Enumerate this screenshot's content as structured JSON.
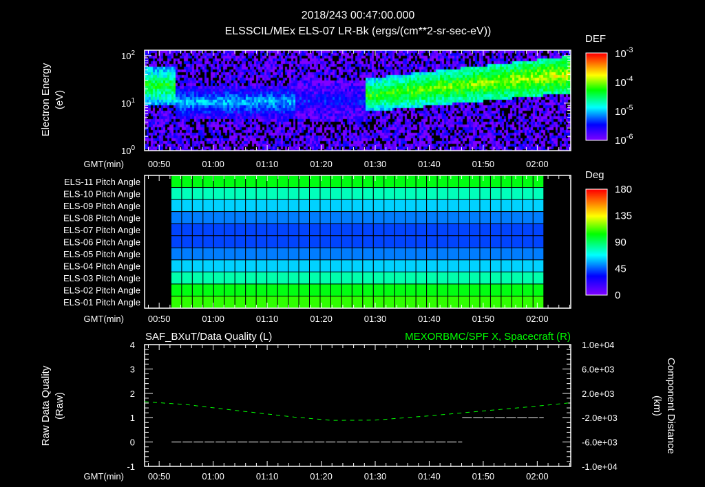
{
  "header": {
    "datetime": "2018/243 00:47:00.000",
    "title": "ELSSCIL/MEx ELS-07 LR-Bk  (ergs/(cm**2-sr-sec-eV))"
  },
  "time_axis": {
    "label": "GMT(min)",
    "xlim_minutes": [
      47.3,
      126.2
    ],
    "ticks": [
      {
        "t": 50,
        "label": "00:50"
      },
      {
        "t": 60,
        "label": "01:00"
      },
      {
        "t": 70,
        "label": "01:10"
      },
      {
        "t": 80,
        "label": "01:20"
      },
      {
        "t": 90,
        "label": "01:30"
      },
      {
        "t": 100,
        "label": "01:40"
      },
      {
        "t": 110,
        "label": "01:50"
      },
      {
        "t": 120,
        "label": "02:00"
      }
    ]
  },
  "chart_data": [
    {
      "type": "heatmap",
      "name": "spectrogram",
      "ylabel": "Electron Energy",
      "yunits": "(eV)",
      "yscale": "log",
      "ylim": [
        1,
        130
      ],
      "yticks": [
        {
          "base": "10",
          "exp": "2",
          "value": 100
        },
        {
          "base": "10",
          "exp": "1",
          "value": 10
        },
        {
          "base": "10",
          "exp": "0",
          "value": 1
        }
      ],
      "colorbar": {
        "label": "DEF",
        "scale": "log",
        "range": [
          1e-06,
          0.001
        ],
        "ticks": [
          {
            "base": "10",
            "exp": "-3"
          },
          {
            "base": "10",
            "exp": "-4"
          },
          {
            "base": "10",
            "exp": "-5"
          },
          {
            "base": "10",
            "exp": "-6"
          }
        ]
      },
      "features": [
        {
          "t_start": 47.3,
          "t_end": 53,
          "e_low": 10,
          "e_high": 60,
          "log_def": -4.3
        },
        {
          "t_start": 53,
          "t_end": 75,
          "e_low": 5,
          "e_high": 25,
          "log_def": -5.0
        },
        {
          "t_start": 75,
          "t_end": 88,
          "e_low": 5,
          "e_high": 30,
          "log_def": -5.4
        },
        {
          "t_start": 88,
          "t_end": 126.2,
          "e_low": 7,
          "e_high": 60,
          "log_def": -4.2
        }
      ],
      "background_log_def": -5.7
    },
    {
      "type": "heatmap",
      "name": "pitch-angles",
      "rows": [
        "ELS-11 Pitch Angle",
        "ELS-10 Pitch Angle",
        "ELS-09 Pitch Angle",
        "ELS-08 Pitch Angle",
        "ELS-07 Pitch Angle",
        "ELS-06 Pitch Angle",
        "ELS-05 Pitch Angle",
        "ELS-04 Pitch Angle",
        "ELS-03 Pitch Angle",
        "ELS-02 Pitch Angle",
        "ELS-01 Pitch Angle"
      ],
      "values_deg": [
        102,
        78,
        62,
        50,
        42,
        42,
        50,
        62,
        80,
        102,
        110
      ],
      "t_range": [
        52.2,
        121.2
      ],
      "columns": 35,
      "colorbar": {
        "label": "Deg",
        "range": [
          0,
          180
        ],
        "ticks": [
          "180",
          "135",
          "90",
          "45",
          "0"
        ]
      }
    },
    {
      "type": "line",
      "name": "data-quality-and-position",
      "left_title": "SAF_BXuT/Data Quality (L)",
      "right_title": "MEXORBMC/SPF X, Spacecraft (R)",
      "left_ylabel": "Raw Data Quality",
      "left_yunits": "(Raw)",
      "left_ylim": [
        -1,
        4
      ],
      "left_yticks": [
        "4",
        "3",
        "2",
        "1",
        "0",
        "-1"
      ],
      "right_ylabel": "Component Distance",
      "right_yunits": "(km)",
      "right_ylim": [
        -10000,
        10000
      ],
      "right_yticks": [
        "1.0e+04",
        "6.0e+03",
        "2.0e+03",
        "-2.0e+03",
        "-6.0e+03",
        "-1.0e+04"
      ],
      "series": [
        {
          "name": "Data Quality",
          "axis": "left",
          "color": "#ffffff",
          "segments": [
            {
              "t_start": 52.3,
              "t_end": 106.1,
              "value": 0
            },
            {
              "t_start": 106.1,
              "t_end": 121.2,
              "value": 1
            }
          ]
        },
        {
          "name": "SPF X",
          "axis": "right",
          "color": "#00ff00",
          "t": [
            47.3,
            55,
            65,
            75,
            82,
            90,
            100,
            110,
            120,
            126.2
          ],
          "values": [
            620,
            150,
            -900,
            -1900,
            -2450,
            -2400,
            -1700,
            -900,
            -100,
            450
          ]
        }
      ]
    }
  ],
  "colors": {
    "text": "#ffffff",
    "green": "#00ff00",
    "background": "#000000"
  }
}
